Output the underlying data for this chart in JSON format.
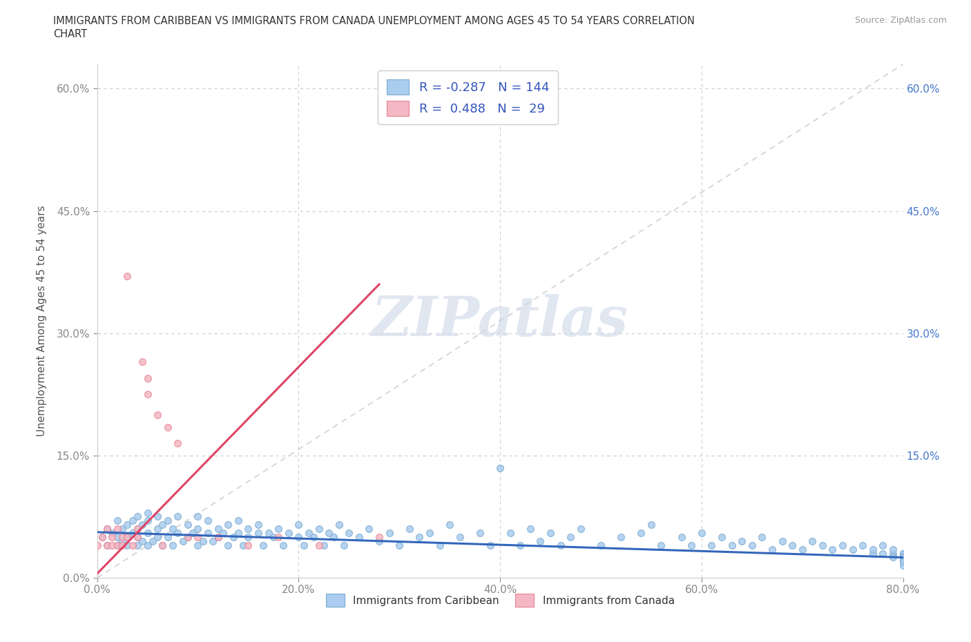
{
  "title_line1": "IMMIGRANTS FROM CARIBBEAN VS IMMIGRANTS FROM CANADA UNEMPLOYMENT AMONG AGES 45 TO 54 YEARS CORRELATION",
  "title_line2": "CHART",
  "source": "Source: ZipAtlas.com",
  "ylabel": "Unemployment Among Ages 45 to 54 years",
  "xlim": [
    0.0,
    0.82
  ],
  "ylim": [
    -0.01,
    0.66
  ],
  "plot_xlim": [
    0.0,
    0.8
  ],
  "plot_ylim": [
    0.0,
    0.63
  ],
  "xticks": [
    0.0,
    0.2,
    0.4,
    0.6,
    0.8
  ],
  "yticks": [
    0.0,
    0.15,
    0.3,
    0.45,
    0.6
  ],
  "xtick_labels": [
    "0.0%",
    "20.0%",
    "40.0%",
    "60.0%",
    "80.0%"
  ],
  "ytick_labels": [
    "",
    "15.0%",
    "30.0%",
    "45.0%",
    "60.0%"
  ],
  "right_tick_labels": [
    "15.0%",
    "30.0%",
    "45.0%",
    "60.0%"
  ],
  "blue_R": -0.287,
  "blue_N": 144,
  "pink_R": 0.488,
  "pink_N": 29,
  "blue_color": "#aaccee",
  "pink_color": "#f4b8c4",
  "blue_edge_color": "#7aaad0",
  "pink_edge_color": "#e88090",
  "blue_line_color": "#3366bb",
  "pink_line_color": "#dd4466",
  "diag_line_color": "#cccccc",
  "watermark_color": "#ccd8e8",
  "watermark": "ZIPatlas",
  "legend_label_blue": "Immigrants from Caribbean",
  "legend_label_pink": "Immigrants from Canada",
  "blue_x": [
    0.005,
    0.01,
    0.01,
    0.015,
    0.02,
    0.02,
    0.02,
    0.025,
    0.025,
    0.03,
    0.03,
    0.03,
    0.035,
    0.035,
    0.04,
    0.04,
    0.04,
    0.04,
    0.045,
    0.045,
    0.05,
    0.05,
    0.05,
    0.05,
    0.055,
    0.06,
    0.06,
    0.06,
    0.065,
    0.065,
    0.07,
    0.07,
    0.075,
    0.075,
    0.08,
    0.08,
    0.085,
    0.09,
    0.09,
    0.095,
    0.1,
    0.1,
    0.1,
    0.105,
    0.11,
    0.11,
    0.115,
    0.12,
    0.12,
    0.125,
    0.13,
    0.13,
    0.135,
    0.14,
    0.14,
    0.145,
    0.15,
    0.15,
    0.16,
    0.16,
    0.165,
    0.17,
    0.175,
    0.18,
    0.185,
    0.19,
    0.2,
    0.2,
    0.205,
    0.21,
    0.215,
    0.22,
    0.225,
    0.23,
    0.235,
    0.24,
    0.245,
    0.25,
    0.26,
    0.27,
    0.28,
    0.29,
    0.3,
    0.31,
    0.32,
    0.33,
    0.34,
    0.35,
    0.36,
    0.38,
    0.39,
    0.4,
    0.41,
    0.42,
    0.43,
    0.44,
    0.45,
    0.46,
    0.47,
    0.48,
    0.5,
    0.52,
    0.54,
    0.55,
    0.56,
    0.58,
    0.59,
    0.6,
    0.61,
    0.62,
    0.63,
    0.64,
    0.65,
    0.66,
    0.67,
    0.68,
    0.69,
    0.7,
    0.71,
    0.72,
    0.73,
    0.74,
    0.75,
    0.76,
    0.77,
    0.77,
    0.78,
    0.78,
    0.79,
    0.79,
    0.79,
    0.8,
    0.8,
    0.8,
    0.8,
    0.8,
    0.8,
    0.8,
    0.8,
    0.8,
    0.8,
    0.8,
    0.8,
    0.8
  ],
  "blue_y": [
    0.05,
    0.06,
    0.04,
    0.055,
    0.04,
    0.07,
    0.05,
    0.06,
    0.045,
    0.05,
    0.065,
    0.04,
    0.055,
    0.07,
    0.04,
    0.06,
    0.05,
    0.075,
    0.045,
    0.065,
    0.04,
    0.07,
    0.055,
    0.08,
    0.045,
    0.06,
    0.05,
    0.075,
    0.04,
    0.065,
    0.05,
    0.07,
    0.04,
    0.06,
    0.055,
    0.075,
    0.045,
    0.065,
    0.05,
    0.055,
    0.04,
    0.06,
    0.075,
    0.045,
    0.055,
    0.07,
    0.045,
    0.06,
    0.05,
    0.055,
    0.04,
    0.065,
    0.05,
    0.055,
    0.07,
    0.04,
    0.06,
    0.05,
    0.055,
    0.065,
    0.04,
    0.055,
    0.05,
    0.06,
    0.04,
    0.055,
    0.05,
    0.065,
    0.04,
    0.055,
    0.05,
    0.06,
    0.04,
    0.055,
    0.05,
    0.065,
    0.04,
    0.055,
    0.05,
    0.06,
    0.045,
    0.055,
    0.04,
    0.06,
    0.05,
    0.055,
    0.04,
    0.065,
    0.05,
    0.055,
    0.04,
    0.135,
    0.055,
    0.04,
    0.06,
    0.045,
    0.055,
    0.04,
    0.05,
    0.06,
    0.04,
    0.05,
    0.055,
    0.065,
    0.04,
    0.05,
    0.04,
    0.055,
    0.04,
    0.05,
    0.04,
    0.045,
    0.04,
    0.05,
    0.035,
    0.045,
    0.04,
    0.035,
    0.045,
    0.04,
    0.035,
    0.04,
    0.035,
    0.04,
    0.03,
    0.035,
    0.03,
    0.04,
    0.03,
    0.035,
    0.025,
    0.03,
    0.025,
    0.03,
    0.025,
    0.03,
    0.025,
    0.02,
    0.025,
    0.02,
    0.025,
    0.02,
    0.015,
    0.02
  ],
  "pink_x": [
    0.0,
    0.005,
    0.01,
    0.01,
    0.015,
    0.015,
    0.02,
    0.02,
    0.025,
    0.025,
    0.03,
    0.03,
    0.035,
    0.04,
    0.04,
    0.045,
    0.05,
    0.05,
    0.06,
    0.065,
    0.07,
    0.08,
    0.09,
    0.1,
    0.12,
    0.15,
    0.18,
    0.22,
    0.28
  ],
  "pink_y": [
    0.04,
    0.05,
    0.04,
    0.06,
    0.05,
    0.04,
    0.06,
    0.04,
    0.05,
    0.04,
    0.37,
    0.05,
    0.04,
    0.06,
    0.05,
    0.265,
    0.245,
    0.225,
    0.2,
    0.04,
    0.185,
    0.165,
    0.05,
    0.05,
    0.05,
    0.04,
    0.05,
    0.04,
    0.05
  ],
  "pink_trend_x0": 0.0,
  "pink_trend_x1": 0.28,
  "pink_trend_y0": 0.005,
  "pink_trend_y1": 0.36,
  "blue_trend_x0": 0.0,
  "blue_trend_x1": 0.8,
  "blue_trend_y0": 0.056,
  "blue_trend_y1": 0.025
}
